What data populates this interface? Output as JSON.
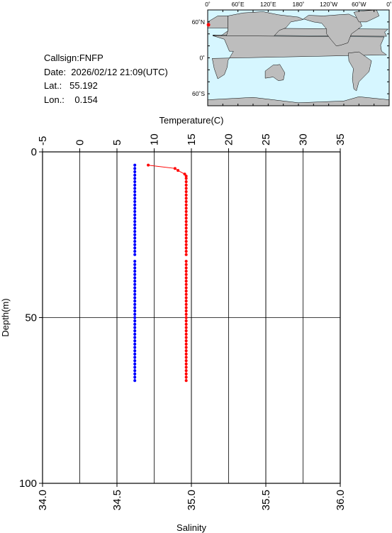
{
  "info": {
    "callsign": "Callsign:FNFP",
    "date": "Date:  2026/02/12 21:09(UTC)",
    "lat": "Lat.:   55.192",
    "lon": "Lon.:    0.154"
  },
  "map": {
    "top_labels": [
      "0˚",
      "60˚E",
      "120˚E",
      "180˚",
      "120˚W",
      "60˚W",
      "0˚"
    ],
    "left_labels": [
      "60˚N",
      "0˚",
      "60˚S"
    ],
    "ocean_color": "#d6f6ff",
    "land_color": "#bdbdbd",
    "station_color": "#ff0000"
  },
  "chart_data": {
    "type": "line",
    "top_axis": {
      "label": "Temperature(C)",
      "range": [
        -5,
        35
      ],
      "ticks": [
        "-5",
        "0",
        "5",
        "10",
        "15",
        "20",
        "25",
        "30",
        "35"
      ]
    },
    "bottom_axis": {
      "label": "Salinity",
      "range": [
        34.0,
        36.0
      ],
      "ticks": [
        "34.0",
        "34.5",
        "35.0",
        "35.5",
        "36.0"
      ]
    },
    "y_axis": {
      "label": "Depth(m)",
      "range": [
        0,
        100
      ],
      "inverted": true,
      "ticks": [
        "0",
        "50",
        "100"
      ]
    },
    "grid": true,
    "series": [
      {
        "color": "#ff0000",
        "axis": "temperature",
        "points": [
          [
            9.2,
            4
          ],
          [
            12.8,
            5
          ],
          [
            13.2,
            5.6
          ],
          [
            14.1,
            6.7
          ],
          [
            14.3,
            7.3
          ],
          [
            14.3,
            8
          ],
          [
            14.3,
            9
          ],
          [
            14.3,
            10
          ],
          [
            14.3,
            11
          ],
          [
            14.3,
            12
          ],
          [
            14.3,
            13
          ],
          [
            14.3,
            14
          ],
          [
            14.3,
            15
          ],
          [
            14.3,
            16
          ],
          [
            14.3,
            17
          ],
          [
            14.3,
            18
          ],
          [
            14.3,
            19
          ],
          [
            14.3,
            20
          ],
          [
            14.3,
            21
          ],
          [
            14.3,
            22
          ],
          [
            14.3,
            23
          ],
          [
            14.3,
            24
          ],
          [
            14.3,
            25
          ],
          [
            14.3,
            26
          ],
          [
            14.3,
            27
          ],
          [
            14.3,
            28
          ],
          [
            14.3,
            29
          ],
          [
            14.3,
            30
          ],
          [
            14.3,
            31
          ],
          [
            14.3,
            33
          ],
          [
            14.3,
            34
          ],
          [
            14.3,
            35
          ],
          [
            14.3,
            36
          ],
          [
            14.3,
            37
          ],
          [
            14.3,
            38
          ],
          [
            14.3,
            39
          ],
          [
            14.3,
            40
          ],
          [
            14.3,
            41
          ],
          [
            14.3,
            42
          ],
          [
            14.3,
            43
          ],
          [
            14.3,
            44
          ],
          [
            14.3,
            45
          ],
          [
            14.3,
            46
          ],
          [
            14.3,
            47
          ],
          [
            14.3,
            48
          ],
          [
            14.3,
            49
          ],
          [
            14.3,
            50
          ],
          [
            14.3,
            51
          ],
          [
            14.3,
            52
          ],
          [
            14.3,
            53
          ],
          [
            14.3,
            54
          ],
          [
            14.3,
            55
          ],
          [
            14.3,
            56
          ],
          [
            14.3,
            57
          ],
          [
            14.3,
            58
          ],
          [
            14.3,
            59
          ],
          [
            14.3,
            60
          ],
          [
            14.3,
            61
          ],
          [
            14.3,
            62
          ],
          [
            14.3,
            63
          ],
          [
            14.3,
            64
          ],
          [
            14.3,
            65
          ],
          [
            14.3,
            66
          ],
          [
            14.3,
            67
          ],
          [
            14.3,
            68
          ],
          [
            14.3,
            69
          ]
        ]
      },
      {
        "color": "#0000ff",
        "axis": "salinity",
        "points": [
          [
            34.62,
            4
          ],
          [
            34.62,
            5
          ],
          [
            34.62,
            6
          ],
          [
            34.62,
            7
          ],
          [
            34.62,
            8
          ],
          [
            34.62,
            9
          ],
          [
            34.62,
            10
          ],
          [
            34.62,
            11
          ],
          [
            34.62,
            12
          ],
          [
            34.62,
            13
          ],
          [
            34.62,
            14
          ],
          [
            34.62,
            15
          ],
          [
            34.62,
            16
          ],
          [
            34.62,
            17
          ],
          [
            34.62,
            18
          ],
          [
            34.62,
            19
          ],
          [
            34.62,
            20
          ],
          [
            34.62,
            21
          ],
          [
            34.62,
            22
          ],
          [
            34.62,
            23
          ],
          [
            34.62,
            24
          ],
          [
            34.62,
            25
          ],
          [
            34.62,
            26
          ],
          [
            34.62,
            27
          ],
          [
            34.62,
            28
          ],
          [
            34.62,
            29
          ],
          [
            34.62,
            30
          ],
          [
            34.62,
            31
          ],
          [
            34.62,
            33
          ],
          [
            34.62,
            34
          ],
          [
            34.62,
            35
          ],
          [
            34.62,
            36
          ],
          [
            34.62,
            37
          ],
          [
            34.62,
            38
          ],
          [
            34.62,
            39
          ],
          [
            34.62,
            40
          ],
          [
            34.62,
            41
          ],
          [
            34.62,
            42
          ],
          [
            34.62,
            43
          ],
          [
            34.62,
            44
          ],
          [
            34.62,
            45
          ],
          [
            34.62,
            46
          ],
          [
            34.62,
            47
          ],
          [
            34.62,
            48
          ],
          [
            34.62,
            49
          ],
          [
            34.62,
            50
          ],
          [
            34.62,
            51
          ],
          [
            34.62,
            52
          ],
          [
            34.62,
            53
          ],
          [
            34.62,
            54
          ],
          [
            34.62,
            55
          ],
          [
            34.62,
            56
          ],
          [
            34.62,
            57
          ],
          [
            34.62,
            58
          ],
          [
            34.62,
            59
          ],
          [
            34.62,
            60
          ],
          [
            34.62,
            61
          ],
          [
            34.62,
            62
          ],
          [
            34.62,
            63
          ],
          [
            34.62,
            64
          ],
          [
            34.62,
            65
          ],
          [
            34.62,
            66
          ],
          [
            34.62,
            67
          ],
          [
            34.62,
            68
          ],
          [
            34.62,
            69
          ]
        ]
      }
    ]
  }
}
